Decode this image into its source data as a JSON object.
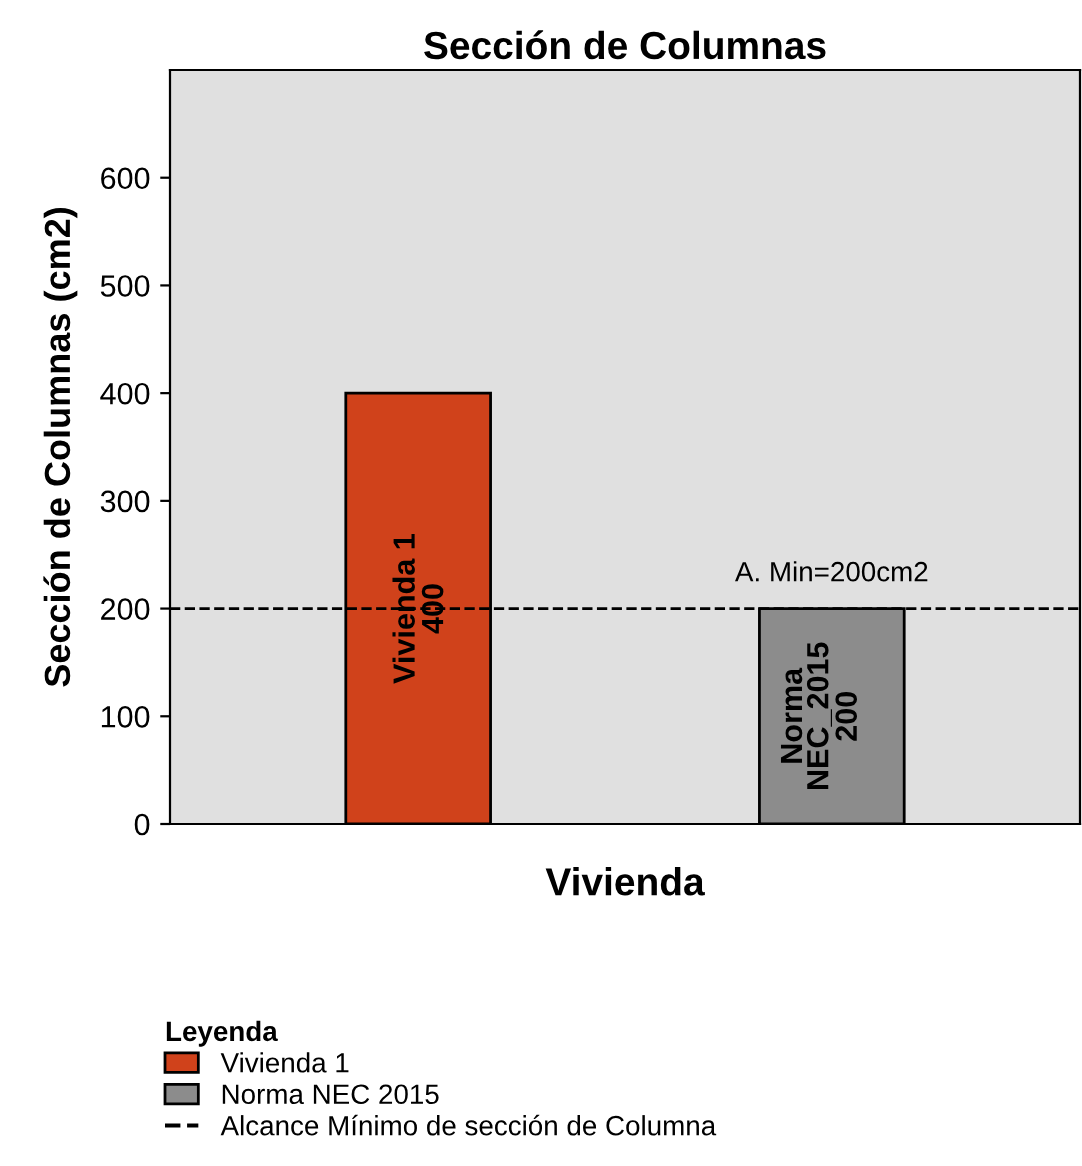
{
  "chart_data": {
    "type": "bar",
    "title": "Sección de Columnas",
    "xlabel": "Vivienda",
    "ylabel": "Sección de Columnas (cm2)",
    "legend_title": "Leyenda",
    "categories": [
      null,
      null
    ],
    "series": [
      {
        "name": "Vivienda 1",
        "color": "#d0421b",
        "values": [
          400,
          null
        ],
        "value_labels": [
          "400",
          null
        ]
      },
      {
        "name": "Norma NEC 2015",
        "color": "#8c8c8c",
        "values": [
          null,
          200
        ],
        "value_labels": [
          null,
          "200"
        ]
      }
    ],
    "ylim": [
      0,
      700
    ],
    "yticks": [
      0,
      100,
      200,
      300,
      400,
      500,
      600
    ],
    "ref_lines": [
      {
        "axis": "y",
        "value": 200,
        "label": "Alcance Mínimo de sección de Columna",
        "color": "#000000",
        "line_style": "dashed"
      }
    ],
    "annotations": [
      "Vivienda 1",
      "Norma\nNEC_2015",
      {
        "text": "A. Min=200cm2",
        "y": 200
      }
    ],
    "grid": false,
    "legend": "bottom"
  }
}
